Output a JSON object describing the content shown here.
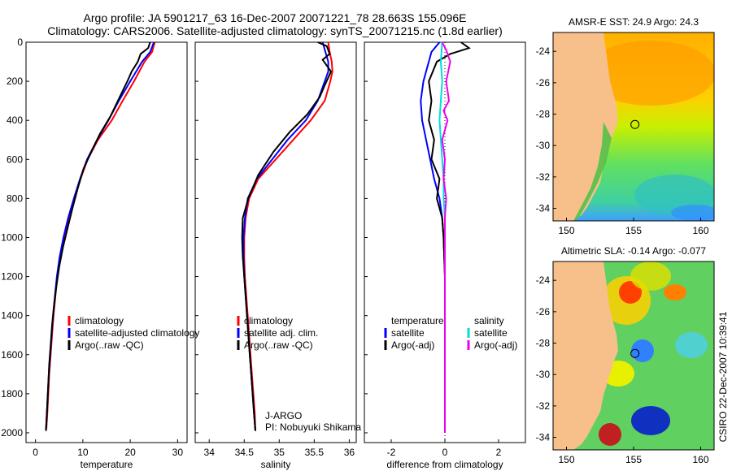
{
  "header": {
    "title_line1": "Argo profile: JA 5901217_63 16-Dec-2007 20071221_78 28.663S 155.096E",
    "title_line2": "Climatology: CARS2006. Satellite-adjusted climatology: synTS_20071215.nc (1.8d earlier)"
  },
  "credit": "CSIRO 22-Dec-2007 10:39:41",
  "program": {
    "name": "J-ARGO",
    "pi": "PI: Nobuyuki Shikama"
  },
  "chart_data": [
    {
      "type": "line",
      "panel": "temperature",
      "xlabel": "temperature",
      "xlim": [
        -2,
        32
      ],
      "ylim": [
        0,
        2050
      ],
      "y_reversed": true,
      "xticks": [
        0,
        10,
        20,
        30
      ],
      "yticks": [
        0,
        200,
        400,
        600,
        800,
        1000,
        1200,
        1400,
        1600,
        1800,
        2000
      ],
      "legend": [
        "climatology",
        "satellite-adjusted climatology",
        "Argo(..raw -QC)"
      ],
      "series": [
        {
          "name": "climatology",
          "color": "#ff0000",
          "points": [
            [
              25.2,
              0
            ],
            [
              24.6,
              50
            ],
            [
              23,
              100
            ],
            [
              20.8,
              200
            ],
            [
              18.4,
              300
            ],
            [
              16.1,
              400
            ],
            [
              13.2,
              500
            ],
            [
              11,
              600
            ],
            [
              9.5,
              700
            ],
            [
              8.2,
              800
            ],
            [
              7,
              900
            ],
            [
              6,
              1000
            ],
            [
              5.2,
              1100
            ],
            [
              4.6,
              1200
            ],
            [
              4.2,
              1300
            ],
            [
              3.8,
              1400
            ],
            [
              3.5,
              1500
            ],
            [
              3.2,
              1600
            ],
            [
              2.9,
              1700
            ],
            [
              2.7,
              1800
            ],
            [
              2.5,
              1900
            ],
            [
              2.3,
              1980
            ]
          ]
        },
        {
          "name": "satellite-adjusted climatology",
          "color": "#0000ff",
          "points": [
            [
              25,
              0
            ],
            [
              24.2,
              50
            ],
            [
              22.5,
              100
            ],
            [
              20,
              200
            ],
            [
              17.6,
              300
            ],
            [
              15.4,
              400
            ],
            [
              13,
              500
            ],
            [
              10.9,
              600
            ],
            [
              9.4,
              700
            ],
            [
              8.1,
              800
            ],
            [
              6.9,
              900
            ],
            [
              5.9,
              1000
            ],
            [
              5.1,
              1100
            ],
            [
              4.5,
              1200
            ],
            [
              4.1,
              1300
            ],
            [
              3.7,
              1400
            ],
            [
              3.4,
              1500
            ],
            [
              3.1,
              1600
            ],
            [
              2.8,
              1700
            ],
            [
              2.6,
              1800
            ],
            [
              2.4,
              1900
            ],
            [
              2.2,
              1990
            ]
          ]
        },
        {
          "name": "Argo(..raw -QC)",
          "color": "#000000",
          "points": [
            [
              24.2,
              0
            ],
            [
              23.8,
              30
            ],
            [
              22.2,
              60
            ],
            [
              21.6,
              100
            ],
            [
              20.3,
              150
            ],
            [
              19.4,
              200
            ],
            [
              17.8,
              280
            ],
            [
              15.8,
              380
            ],
            [
              13.6,
              470
            ],
            [
              11.8,
              560
            ],
            [
              10.1,
              650
            ],
            [
              8.9,
              750
            ],
            [
              7.8,
              850
            ],
            [
              6.8,
              950
            ],
            [
              5.8,
              1050
            ],
            [
              5.0,
              1150
            ],
            [
              4.4,
              1250
            ],
            [
              3.9,
              1350
            ],
            [
              3.5,
              1450
            ],
            [
              3.2,
              1550
            ],
            [
              2.9,
              1650
            ],
            [
              2.7,
              1750
            ],
            [
              2.5,
              1850
            ],
            [
              2.3,
              1950
            ],
            [
              2.2,
              1990
            ]
          ]
        }
      ]
    },
    {
      "type": "line",
      "panel": "salinity",
      "xlabel": "salinity",
      "xlim": [
        33.8,
        36.1
      ],
      "ylim": [
        0,
        2050
      ],
      "y_reversed": true,
      "xticks": [
        34,
        34.5,
        35,
        35.5,
        36
      ],
      "legend": [
        "climatology",
        "satellite adj. clim.",
        "Argo(..raw -QC)"
      ],
      "series": [
        {
          "name": "climatology",
          "color": "#ff0000",
          "points": [
            [
              35.7,
              0
            ],
            [
              35.72,
              50
            ],
            [
              35.75,
              100
            ],
            [
              35.76,
              150
            ],
            [
              35.73,
              200
            ],
            [
              35.65,
              300
            ],
            [
              35.45,
              400
            ],
            [
              35.2,
              500
            ],
            [
              34.95,
              600
            ],
            [
              34.7,
              700
            ],
            [
              34.57,
              800
            ],
            [
              34.52,
              900
            ],
            [
              34.5,
              1000
            ],
            [
              34.5,
              1100
            ],
            [
              34.51,
              1200
            ],
            [
              34.53,
              1300
            ],
            [
              34.55,
              1400
            ],
            [
              34.57,
              1500
            ],
            [
              34.59,
              1600
            ],
            [
              34.61,
              1700
            ],
            [
              34.63,
              1800
            ],
            [
              34.65,
              1900
            ],
            [
              34.66,
              1990
            ]
          ]
        },
        {
          "name": "satellite adj. clim.",
          "color": "#0000ff",
          "points": [
            [
              35.62,
              0
            ],
            [
              35.66,
              50
            ],
            [
              35.7,
              100
            ],
            [
              35.7,
              150
            ],
            [
              35.65,
              200
            ],
            [
              35.55,
              300
            ],
            [
              35.38,
              400
            ],
            [
              35.12,
              500
            ],
            [
              34.9,
              600
            ],
            [
              34.68,
              700
            ],
            [
              34.55,
              800
            ],
            [
              34.51,
              900
            ],
            [
              34.49,
              1000
            ],
            [
              34.49,
              1100
            ],
            [
              34.5,
              1200
            ],
            [
              34.52,
              1300
            ],
            [
              34.54,
              1400
            ],
            [
              34.56,
              1500
            ],
            [
              34.58,
              1600
            ],
            [
              34.6,
              1700
            ],
            [
              34.62,
              1800
            ],
            [
              34.64,
              1900
            ],
            [
              34.66,
              1990
            ]
          ]
        },
        {
          "name": "Argo(..raw -QC)",
          "color": "#000000",
          "points": [
            [
              35.55,
              0
            ],
            [
              35.68,
              20
            ],
            [
              35.72,
              60
            ],
            [
              35.62,
              90
            ],
            [
              35.74,
              150
            ],
            [
              35.65,
              220
            ],
            [
              35.58,
              280
            ],
            [
              35.48,
              330
            ],
            [
              35.4,
              370
            ],
            [
              35.15,
              460
            ],
            [
              34.92,
              560
            ],
            [
              34.7,
              680
            ],
            [
              34.56,
              800
            ],
            [
              34.48,
              900
            ],
            [
              34.47,
              1000
            ],
            [
              34.48,
              1100
            ],
            [
              34.5,
              1200
            ],
            [
              34.52,
              1300
            ],
            [
              34.54,
              1400
            ],
            [
              34.56,
              1500
            ],
            [
              34.58,
              1600
            ],
            [
              34.6,
              1700
            ],
            [
              34.62,
              1800
            ],
            [
              34.64,
              1900
            ],
            [
              34.66,
              1990
            ]
          ]
        }
      ]
    },
    {
      "type": "line",
      "panel": "difference",
      "xlabel": "difference from climatology",
      "xlim": [
        -3,
        3
      ],
      "ylim": [
        0,
        2050
      ],
      "y_reversed": true,
      "xticks": [
        -2,
        0,
        2
      ],
      "legend_left": [
        "temperature",
        "satellite",
        "Argo(-adj)"
      ],
      "legend_right": [
        "salinity",
        "satellite",
        "Argo(-adj)"
      ],
      "series": [
        {
          "name": "temperature satellite",
          "color": "#0000ff",
          "points": [
            [
              -0.2,
              0
            ],
            [
              -0.5,
              50
            ],
            [
              -0.6,
              100
            ],
            [
              -0.8,
              200
            ],
            [
              -0.9,
              300
            ],
            [
              -0.85,
              400
            ],
            [
              -0.7,
              500
            ],
            [
              -0.55,
              600
            ],
            [
              -0.4,
              700
            ],
            [
              -0.2,
              800
            ],
            [
              -0.1,
              900
            ],
            [
              -0.05,
              1000
            ],
            [
              0,
              1200
            ],
            [
              0,
              2000
            ]
          ]
        },
        {
          "name": "temperature Argo(-adj)",
          "color": "#000000",
          "points": [
            [
              0.6,
              0
            ],
            [
              0.9,
              30
            ],
            [
              0.2,
              60
            ],
            [
              -0.3,
              100
            ],
            [
              -0.6,
              200
            ],
            [
              -0.5,
              300
            ],
            [
              -0.6,
              400
            ],
            [
              -0.4,
              500
            ],
            [
              -0.5,
              600
            ],
            [
              -0.2,
              700
            ],
            [
              -0.3,
              800
            ],
            [
              -0.1,
              900
            ],
            [
              -0.05,
              1000
            ],
            [
              0,
              1200
            ],
            [
              0,
              2000
            ]
          ]
        },
        {
          "name": "salinity satellite",
          "color": "#00dddd",
          "points": [
            [
              -0.1,
              0
            ],
            [
              -0.15,
              100
            ],
            [
              -0.1,
              200
            ],
            [
              -0.15,
              300
            ],
            [
              -0.2,
              400
            ],
            [
              -0.15,
              500
            ],
            [
              -0.1,
              600
            ],
            [
              -0.05,
              700
            ],
            [
              -0.05,
              800
            ],
            [
              0,
              900
            ],
            [
              0,
              2000
            ]
          ]
        },
        {
          "name": "salinity Argo(-adj)",
          "color": "#ee00ee",
          "points": [
            [
              -0.1,
              0
            ],
            [
              0.05,
              40
            ],
            [
              0.2,
              100
            ],
            [
              0.05,
              200
            ],
            [
              0.15,
              300
            ],
            [
              -0.05,
              350
            ],
            [
              0.1,
              400
            ],
            [
              -0.1,
              500
            ],
            [
              0,
              600
            ],
            [
              -0.05,
              700
            ],
            [
              0.05,
              800
            ],
            [
              0,
              900
            ],
            [
              0,
              2000
            ]
          ]
        }
      ]
    },
    {
      "type": "heatmap",
      "panel": "sst-map",
      "title": "AMSR-E SST: 24.9 Argo: 24.3",
      "xlim": [
        149,
        161
      ],
      "ylim": [
        -34.8,
        -22.8
      ],
      "xticks": [
        150,
        155,
        160
      ],
      "yticks": [
        -24,
        -26,
        -28,
        -30,
        -32,
        -34
      ],
      "argo_position": [
        155.1,
        -28.66
      ]
    },
    {
      "type": "heatmap",
      "panel": "sla-map",
      "title": "Altimetric SLA: -0.14 Argo: -0.077",
      "xlim": [
        149,
        161
      ],
      "ylim": [
        -34.8,
        -22.8
      ],
      "xticks": [
        150,
        155,
        160
      ],
      "yticks": [
        -24,
        -26,
        -28,
        -30,
        -32,
        -34
      ],
      "argo_position": [
        155.1,
        -28.66
      ]
    }
  ],
  "colors": {
    "land": "#f7c08a",
    "climatology": "#ff0000",
    "satellite": "#0000ff",
    "argo": "#000000",
    "cyan": "#00dddd",
    "magenta": "#ee00ee"
  }
}
